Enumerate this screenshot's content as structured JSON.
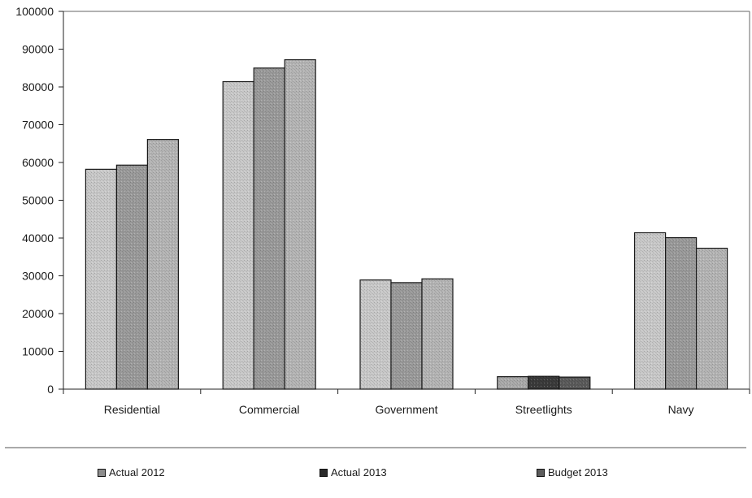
{
  "chart_data": {
    "type": "bar",
    "categories": [
      "Residential",
      "Commercial",
      "Government",
      "Streetlights",
      "Navy"
    ],
    "series": [
      {
        "name": "Actual 2012",
        "values": [
          58200,
          81400,
          28900,
          3300,
          41400
        ],
        "color": "#c8c8c8"
      },
      {
        "name": "Actual 2013",
        "values": [
          59300,
          85000,
          28200,
          3400,
          40100
        ],
        "color": "#9a9a9a"
      },
      {
        "name": "Budget 2013",
        "values": [
          66100,
          87200,
          29200,
          3200,
          37300
        ],
        "color": "#b4b4b4"
      }
    ],
    "yticks": [
      "0",
      "10000",
      "20000",
      "30000",
      "40000",
      "50000",
      "60000",
      "70000",
      "80000",
      "90000",
      "100000"
    ],
    "ylim": [
      0,
      100000
    ],
    "grid": false,
    "legend_position": "bottom",
    "streetlights_colors": [
      "#a9a9a9",
      "#3a3a3a",
      "#5a5a5a"
    ]
  }
}
